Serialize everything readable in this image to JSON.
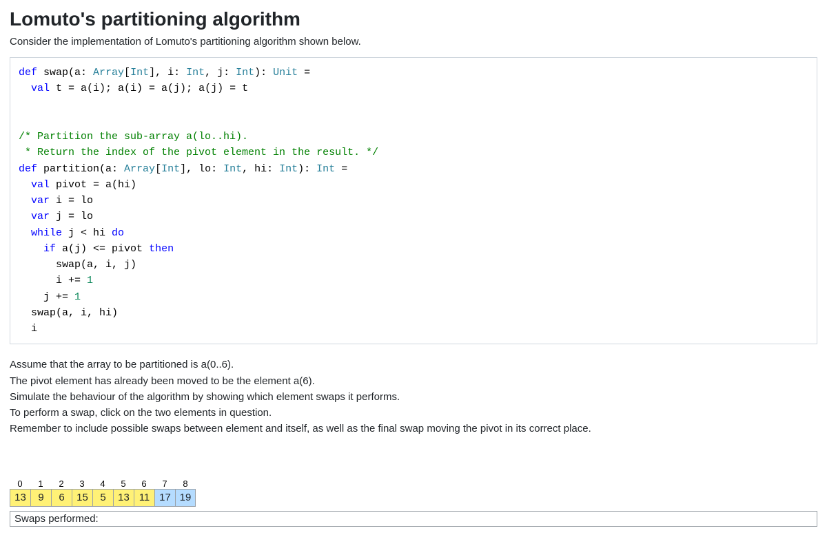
{
  "title": "Lomuto's partitioning algorithm",
  "intro": "Consider the implementation of Lomuto's partitioning algorithm shown below.",
  "code": {
    "l1a": "def",
    "l1b": " swap(a: ",
    "l1c": "Array",
    "l1d": "[",
    "l1e": "Int",
    "l1f": "], i: ",
    "l1g": "Int",
    "l1h": ", j: ",
    "l1i": "Int",
    "l1j": "): ",
    "l1k": "Unit",
    "l1l": " =",
    "l2a": "  ",
    "l2b": "val",
    "l2c": " t = a(i); a(i) = a(j); a(j) = t",
    "l4a": "/* Partition the sub-array a(lo..hi).",
    "l5a": " * Return the index of the pivot element in the result. */",
    "l6a": "def",
    "l6b": " partition(a: ",
    "l6c": "Array",
    "l6d": "[",
    "l6e": "Int",
    "l6f": "], lo: ",
    "l6g": "Int",
    "l6h": ", hi: ",
    "l6i": "Int",
    "l6j": "): ",
    "l6k": "Int",
    "l6l": " =",
    "l7a": "  ",
    "l7b": "val",
    "l7c": " pivot = a(hi)",
    "l8a": "  ",
    "l8b": "var",
    "l8c": " i = lo",
    "l9a": "  ",
    "l9b": "var",
    "l9c": " j = lo",
    "l10a": "  ",
    "l10b": "while",
    "l10c": " j < hi ",
    "l10d": "do",
    "l11a": "    ",
    "l11b": "if",
    "l11c": " a(j) <= pivot ",
    "l11d": "then",
    "l12a": "      swap(a, i, j)",
    "l13a": "      i += ",
    "l13b": "1",
    "l14a": "    j += ",
    "l14b": "1",
    "l15a": "  swap(a, i, hi)",
    "l16a": "  i"
  },
  "instr": {
    "p1": "Assume that the array to be partitioned is a(0..6).",
    "p2": "The pivot element has already been moved to be the element a(6).",
    "p3": "Simulate the behaviour of the algorithm by showing which element swaps it performs.",
    "p4": "To perform a swap, click on the two elements in question.",
    "p5": "Remember to include possible swaps between element and itself, as well as the final swap moving the pivot in its correct place."
  },
  "array": {
    "indices": [
      "0",
      "1",
      "2",
      "3",
      "4",
      "5",
      "6",
      "7",
      "8"
    ],
    "values": [
      "13",
      "9",
      "6",
      "15",
      "5",
      "13",
      "11",
      "17",
      "19"
    ],
    "styles": [
      "hl-yellow",
      "hl-yellow",
      "hl-yellow",
      "hl-yellow",
      "hl-yellow",
      "hl-yellow",
      "hl-yellow",
      "hl-blue",
      "hl-blue"
    ]
  },
  "swapsLabel": "Swaps performed:"
}
